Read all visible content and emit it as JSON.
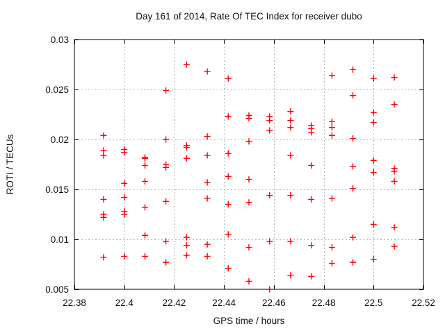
{
  "chart_data": {
    "type": "scatter",
    "title": "Day 161 of 2014, Rate Of TEC Index for receiver dubo",
    "xlabel": "GPS time / hours",
    "ylabel": "ROTI / TECUs",
    "xlim": [
      22.38,
      22.52
    ],
    "ylim": [
      0.005,
      0.03
    ],
    "x_ticks": [
      22.38,
      22.4,
      22.42,
      22.44,
      22.46,
      22.48,
      22.5,
      22.52
    ],
    "x_tick_labels": [
      "22.38",
      "22.4",
      "22.42",
      "22.44",
      "22.46",
      "22.48",
      "22.5",
      "22.52"
    ],
    "y_ticks": [
      0.005,
      0.01,
      0.015,
      0.02,
      0.025,
      0.03
    ],
    "y_tick_labels": [
      "0.005",
      "0.01",
      "0.015",
      "0.02",
      "0.025",
      "0.03"
    ],
    "grid": true,
    "legend_position": "none",
    "marker": {
      "shape": "plus",
      "color": "#ff0000",
      "half_size": 4.5,
      "stroke_width": 1.4
    },
    "grid_color": "#b3b3b3",
    "border_color": "#000000",
    "series": [
      {
        "name": "ROTI",
        "points": [
          [
            22.3917,
            0.0204
          ],
          [
            22.3917,
            0.0189
          ],
          [
            22.3917,
            0.0184
          ],
          [
            22.3917,
            0.014
          ],
          [
            22.3917,
            0.0125
          ],
          [
            22.3917,
            0.0122
          ],
          [
            22.3917,
            0.0082
          ],
          [
            22.4,
            0.019
          ],
          [
            22.4,
            0.0187
          ],
          [
            22.4,
            0.0156
          ],
          [
            22.4,
            0.0142
          ],
          [
            22.4,
            0.0128
          ],
          [
            22.4,
            0.0125
          ],
          [
            22.4,
            0.0083
          ],
          [
            22.4083,
            0.0182
          ],
          [
            22.4083,
            0.0181
          ],
          [
            22.4083,
            0.0174
          ],
          [
            22.4083,
            0.0158
          ],
          [
            22.4083,
            0.0132
          ],
          [
            22.4083,
            0.0104
          ],
          [
            22.4083,
            0.0083
          ],
          [
            22.4167,
            0.0249
          ],
          [
            22.4167,
            0.02
          ],
          [
            22.4167,
            0.0175
          ],
          [
            22.4167,
            0.0172
          ],
          [
            22.4167,
            0.0138
          ],
          [
            22.4167,
            0.0098
          ],
          [
            22.4167,
            0.0077
          ],
          [
            22.425,
            0.0275
          ],
          [
            22.425,
            0.0194
          ],
          [
            22.425,
            0.0192
          ],
          [
            22.425,
            0.0181
          ],
          [
            22.425,
            0.0102
          ],
          [
            22.425,
            0.0094
          ],
          [
            22.425,
            0.0084
          ],
          [
            22.4333,
            0.0268
          ],
          [
            22.4333,
            0.0203
          ],
          [
            22.4333,
            0.0184
          ],
          [
            22.4333,
            0.0157
          ],
          [
            22.4333,
            0.0141
          ],
          [
            22.4333,
            0.0095
          ],
          [
            22.4333,
            0.0083
          ],
          [
            22.4417,
            0.0261
          ],
          [
            22.4417,
            0.0223
          ],
          [
            22.4417,
            0.0186
          ],
          [
            22.4417,
            0.0163
          ],
          [
            22.4417,
            0.0135
          ],
          [
            22.4417,
            0.0105
          ],
          [
            22.4417,
            0.0071
          ],
          [
            22.45,
            0.0224
          ],
          [
            22.45,
            0.0221
          ],
          [
            22.45,
            0.0198
          ],
          [
            22.45,
            0.016
          ],
          [
            22.45,
            0.0137
          ],
          [
            22.45,
            0.0092
          ],
          [
            22.45,
            0.0058
          ],
          [
            22.4583,
            0.0223
          ],
          [
            22.4583,
            0.0219
          ],
          [
            22.4583,
            0.0209
          ],
          [
            22.4583,
            0.0144
          ],
          [
            22.4583,
            0.0098
          ],
          [
            22.4583,
            0.005
          ],
          [
            22.4667,
            0.0228
          ],
          [
            22.4667,
            0.0219
          ],
          [
            22.4667,
            0.0212
          ],
          [
            22.4667,
            0.0184
          ],
          [
            22.4667,
            0.0144
          ],
          [
            22.4667,
            0.0098
          ],
          [
            22.4667,
            0.0064
          ],
          [
            22.475,
            0.0214
          ],
          [
            22.475,
            0.0211
          ],
          [
            22.475,
            0.0207
          ],
          [
            22.475,
            0.0174
          ],
          [
            22.475,
            0.014
          ],
          [
            22.475,
            0.0094
          ],
          [
            22.475,
            0.0063
          ],
          [
            22.4833,
            0.0264
          ],
          [
            22.4833,
            0.0218
          ],
          [
            22.4833,
            0.0212
          ],
          [
            22.4833,
            0.0204
          ],
          [
            22.4833,
            0.0141
          ],
          [
            22.4833,
            0.0092
          ],
          [
            22.4833,
            0.0076
          ],
          [
            22.4917,
            0.027
          ],
          [
            22.4917,
            0.0244
          ],
          [
            22.4917,
            0.0201
          ],
          [
            22.4917,
            0.0173
          ],
          [
            22.4917,
            0.0151
          ],
          [
            22.4917,
            0.0102
          ],
          [
            22.4917,
            0.0077
          ],
          [
            22.5,
            0.0261
          ],
          [
            22.5,
            0.0227
          ],
          [
            22.5,
            0.0217
          ],
          [
            22.5,
            0.0179
          ],
          [
            22.5,
            0.0167
          ],
          [
            22.5,
            0.0115
          ],
          [
            22.5,
            0.008
          ],
          [
            22.5083,
            0.0262
          ],
          [
            22.5083,
            0.0235
          ],
          [
            22.5083,
            0.0171
          ],
          [
            22.5083,
            0.0168
          ],
          [
            22.5083,
            0.0158
          ],
          [
            22.5083,
            0.0112
          ],
          [
            22.5083,
            0.0093
          ]
        ]
      }
    ]
  }
}
